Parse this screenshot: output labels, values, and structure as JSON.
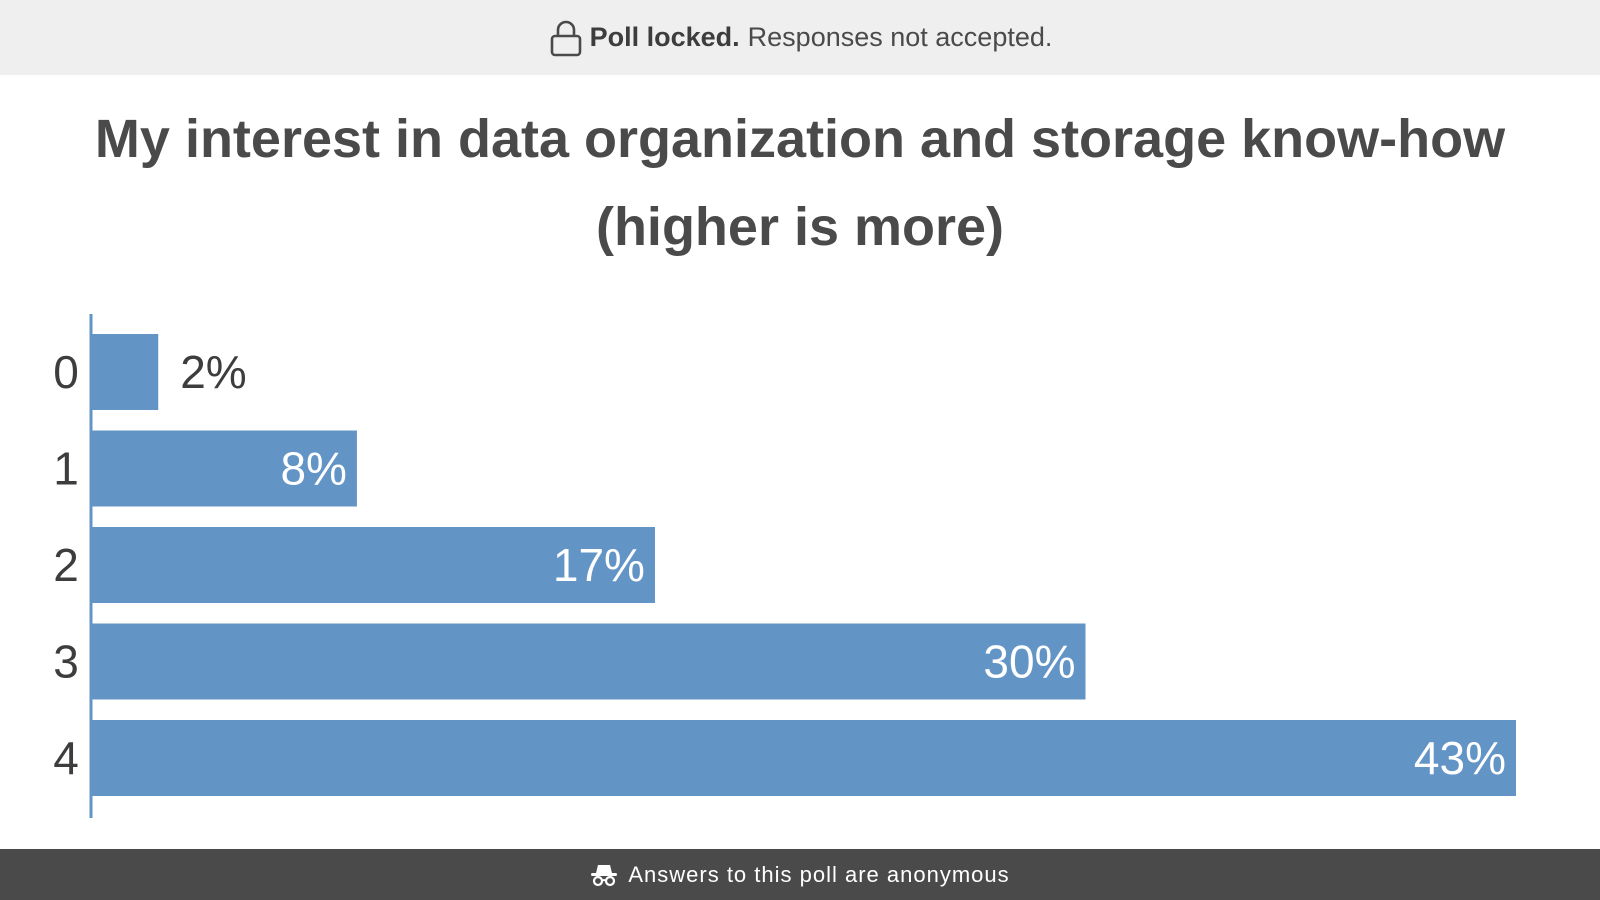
{
  "banner": {
    "icon": "lock-icon",
    "strong_text": "Poll locked.",
    "rest_text": "Responses not accepted."
  },
  "poll": {
    "title": "My interest in data organization and storage know-how (higher is more)"
  },
  "colors": {
    "bar": "#6394c6",
    "axis": "#6394c6",
    "banner_bg": "#efefef",
    "footer_bg": "#4a4a4a",
    "text": "#4a4a4a"
  },
  "chart_data": {
    "type": "bar",
    "orientation": "horizontal",
    "categories": [
      "0",
      "1",
      "2",
      "3",
      "4"
    ],
    "values": [
      2,
      8,
      17,
      30,
      43
    ],
    "value_labels": [
      "2%",
      "8%",
      "17%",
      "30%",
      "43%"
    ],
    "xlim": [
      0,
      43
    ],
    "grid": false,
    "legend": "none"
  },
  "footer": {
    "icon": "incognito-icon",
    "text": "Answers to this poll are anonymous"
  }
}
